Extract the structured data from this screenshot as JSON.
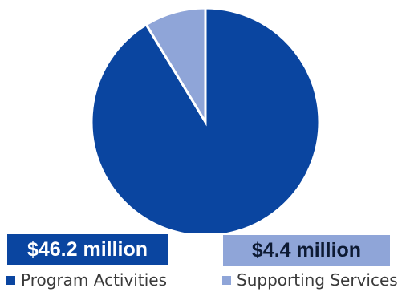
{
  "chart_data": {
    "type": "pie",
    "slices": [
      {
        "label": "Program Activities",
        "value": 46.2,
        "display_value": "$46.2 million",
        "color": "#0a45a0"
      },
      {
        "label": "Supporting Services",
        "value": 4.4,
        "display_value": "$4.4 million",
        "color": "#8fa5d8"
      }
    ],
    "legend_position": "bottom"
  }
}
